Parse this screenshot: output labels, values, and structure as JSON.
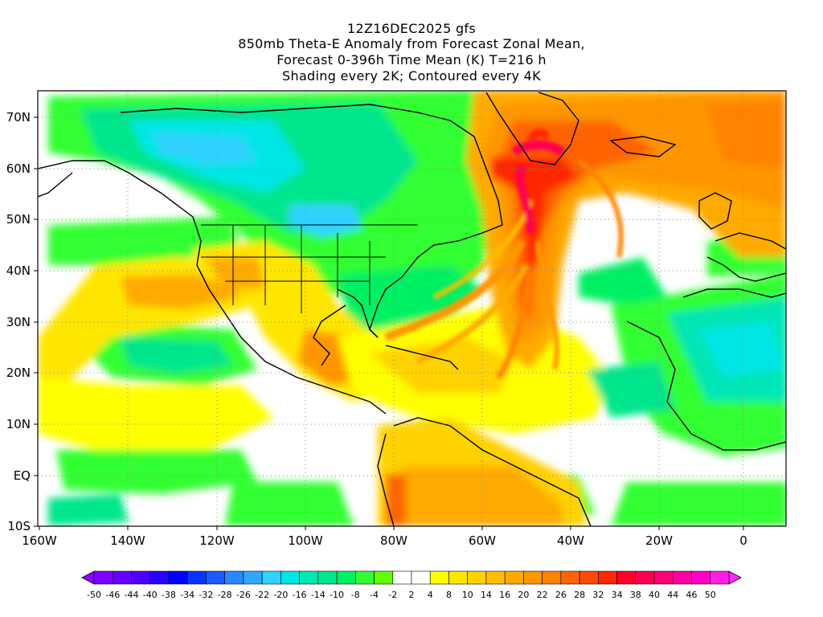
{
  "header": {
    "line1": "12Z16DEC2025 gfs",
    "line2": "850mb Theta-E Anomaly from Forecast Zonal Mean,",
    "line3": "Forecast 0-396h Time Mean (K) T=216 h",
    "line4": "Shading every 2K; Contoured every 4K"
  },
  "map": {
    "lon_range": [
      -160,
      10
    ],
    "lat_range": [
      -10,
      75
    ],
    "lat_ticks": [
      "70N",
      "60N",
      "50N",
      "40N",
      "30N",
      "20N",
      "10N",
      "EQ",
      "10S"
    ],
    "lon_ticks": [
      "160W",
      "140W",
      "120W",
      "100W",
      "80W",
      "60W",
      "40W",
      "20W",
      "0"
    ],
    "grid": "dotted"
  },
  "colorbar": {
    "labels": [
      "-50",
      "-46",
      "-44",
      "-40",
      "-38",
      "-34",
      "-32",
      "-28",
      "-26",
      "-22",
      "-20",
      "-16",
      "-14",
      "-10",
      "-8",
      "-4",
      "-2",
      "2",
      "4",
      "8",
      "10",
      "14",
      "16",
      "20",
      "22",
      "26",
      "28",
      "32",
      "34",
      "38",
      "40",
      "44",
      "46",
      "50"
    ],
    "colors": [
      "#7d00ff",
      "#6600ff",
      "#4b00ff",
      "#2a00ff",
      "#0000ff",
      "#0a32ff",
      "#1e5aff",
      "#2888ff",
      "#30a8ff",
      "#30d2ff",
      "#00e6e6",
      "#00e6b4",
      "#00e68c",
      "#00f064",
      "#32ff32",
      "#64ff00",
      "#ffffff",
      "#ffffff",
      "#ffff00",
      "#ffe600",
      "#ffd200",
      "#ffbe00",
      "#ffaa00",
      "#ff9600",
      "#ff8200",
      "#ff6400",
      "#ff4b00",
      "#ff2800",
      "#ff0028",
      "#ff0050",
      "#ff0078",
      "#ff00a0",
      "#ff00c8",
      "#ff1ee6"
    ],
    "end_left_color": "#8a00ff",
    "end_right_color": "#ff28ff"
  }
}
